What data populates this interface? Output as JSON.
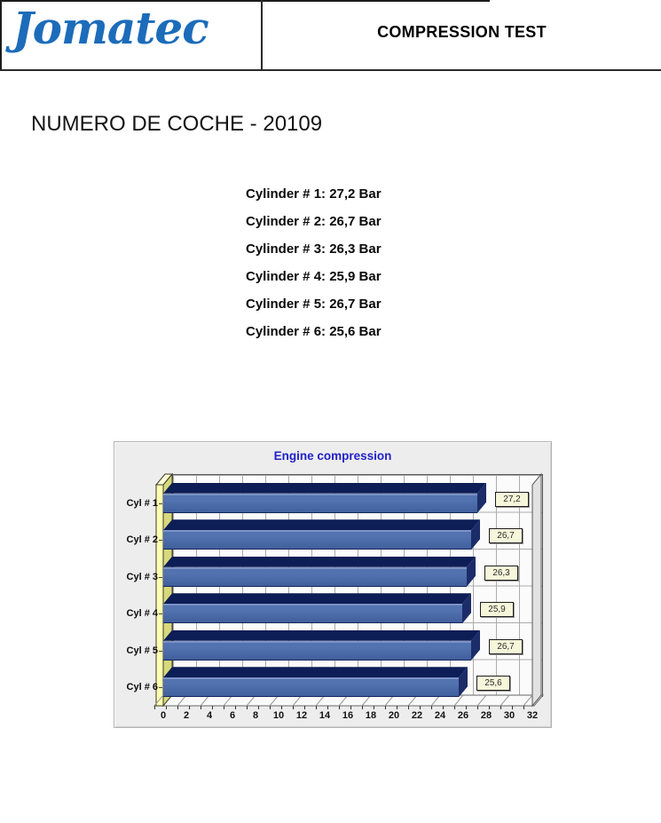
{
  "header": {
    "logo_text": "Jomatec",
    "title": "COMPRESSION TEST",
    "logo_color": "#1c6cba"
  },
  "document": {
    "heading": "NUMERO DE COCHE - 20109",
    "readings": [
      "Cylinder # 1: 27,2 Bar",
      "Cylinder # 2: 26,7 Bar",
      "Cylinder # 3: 26,3 Bar",
      "Cylinder # 4: 25,9 Bar",
      "Cylinder # 5: 26,7 Bar",
      "Cylinder # 6: 25,6 Bar"
    ]
  },
  "chart_data": {
    "type": "bar",
    "orientation": "horizontal",
    "style": "3d",
    "title": "Engine compression",
    "title_color": "#2121c8",
    "categories": [
      "Cyl # 1",
      "Cyl # 2",
      "Cyl # 3",
      "Cyl # 4",
      "Cyl # 5",
      "Cyl # 6"
    ],
    "values": [
      27.2,
      26.7,
      26.3,
      25.9,
      26.7,
      25.6
    ],
    "value_labels": [
      "27,2",
      "26,7",
      "26,3",
      "25,9",
      "26,7",
      "25,6"
    ],
    "unit": "Bar",
    "xlim": [
      0,
      32
    ],
    "x_tick_step": 2,
    "x_ticks": [
      0,
      2,
      4,
      6,
      8,
      10,
      12,
      14,
      16,
      18,
      20,
      22,
      24,
      26,
      28,
      30,
      32
    ],
    "grid": true,
    "legend": "none",
    "bar_color": "#4a6aa8",
    "bar_top_color": "#0d1d56",
    "left_wall_color": "#ffffb3",
    "panel_color": "#ededed",
    "plot_background": "#fbfbfb"
  }
}
